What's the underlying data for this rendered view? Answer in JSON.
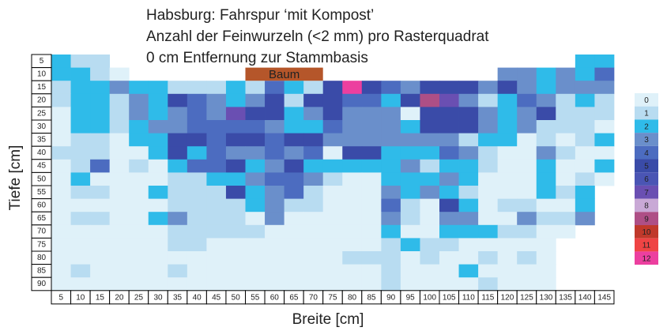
{
  "chart_data": {
    "type": "heatmap",
    "title": [
      "Habsburg: Fahrspur ‘mit Kompost’",
      "Anzahl der Feinwurzeln (<2 mm) pro Rasterquadrat",
      "0 cm Entfernung zur Stammbasis"
    ],
    "xlabel": "Breite [cm]",
    "ylabel": "Tiefe [cm]",
    "annotation": "Baum",
    "x": [
      5,
      10,
      15,
      20,
      25,
      30,
      35,
      40,
      45,
      50,
      55,
      60,
      65,
      70,
      75,
      80,
      85,
      90,
      95,
      100,
      105,
      110,
      115,
      120,
      125,
      130,
      135,
      140,
      145
    ],
    "y": [
      5,
      10,
      15,
      20,
      25,
      30,
      35,
      40,
      45,
      50,
      55,
      60,
      65,
      70,
      75,
      80,
      85,
      90
    ],
    "legend_values": [
      0,
      1,
      2,
      3,
      4,
      5,
      6,
      7,
      8,
      9,
      10,
      11,
      12
    ],
    "colors": [
      "#dff1f9",
      "#b8dcf1",
      "#2fbbe9",
      "#6a8fcb",
      "#4c6cc0",
      "#3a4ba8",
      "#4a55b4",
      "#6a4fb2",
      "#c9a9d6",
      "#ae4f86",
      "#c0392b",
      "#ef4444",
      "#ec3f9f"
    ],
    "z": [
      [
        2,
        1,
        1,
        null,
        null,
        null,
        null,
        null,
        null,
        null,
        null,
        null,
        null,
        null,
        null,
        null,
        null,
        null,
        null,
        null,
        null,
        null,
        null,
        null,
        null,
        null,
        null,
        2,
        2
      ],
      [
        2,
        2,
        1,
        0,
        null,
        null,
        null,
        null,
        null,
        null,
        null,
        null,
        null,
        null,
        null,
        null,
        null,
        null,
        null,
        null,
        null,
        null,
        null,
        3,
        3,
        2,
        3,
        2,
        4
      ],
      [
        1,
        2,
        2,
        3,
        2,
        2,
        1,
        1,
        1,
        2,
        1,
        4,
        2,
        1,
        5,
        12,
        5,
        4,
        3,
        5,
        5,
        5,
        3,
        5,
        3,
        2,
        3,
        3,
        3
      ],
      [
        1,
        2,
        2,
        1,
        3,
        2,
        5,
        4,
        3,
        2,
        3,
        5,
        1,
        5,
        5,
        4,
        4,
        2,
        5,
        9,
        7,
        3,
        1,
        2,
        4,
        3,
        1,
        2,
        1
      ],
      [
        0,
        2,
        2,
        1,
        3,
        2,
        3,
        4,
        3,
        7,
        5,
        5,
        2,
        3,
        5,
        3,
        3,
        3,
        0,
        5,
        5,
        5,
        3,
        2,
        3,
        5,
        1,
        1,
        1
      ],
      [
        0,
        2,
        2,
        1,
        2,
        3,
        3,
        4,
        4,
        4,
        4,
        3,
        2,
        2,
        4,
        3,
        3,
        3,
        2,
        5,
        5,
        5,
        3,
        2,
        3,
        1,
        1,
        1,
        0
      ],
      [
        0,
        1,
        1,
        0,
        2,
        2,
        5,
        5,
        4,
        5,
        5,
        4,
        5,
        5,
        3,
        3,
        3,
        3,
        3,
        3,
        3,
        1,
        2,
        2,
        0,
        1,
        0,
        1,
        2
      ],
      [
        1,
        1,
        1,
        0,
        0,
        2,
        5,
        2,
        4,
        3,
        3,
        4,
        3,
        4,
        0,
        5,
        5,
        2,
        2,
        2,
        4,
        3,
        1,
        0,
        0,
        3,
        1,
        0,
        0
      ],
      [
        0,
        1,
        4,
        0,
        1,
        0,
        2,
        4,
        4,
        5,
        2,
        3,
        5,
        2,
        2,
        2,
        2,
        2,
        3,
        1,
        2,
        2,
        1,
        0,
        0,
        2,
        0,
        0,
        2
      ],
      [
        0,
        2,
        0,
        0,
        0,
        0,
        1,
        1,
        2,
        2,
        3,
        4,
        4,
        3,
        1,
        0,
        0,
        2,
        2,
        2,
        3,
        2,
        0,
        0,
        0,
        2,
        0,
        1,
        0
      ],
      [
        0,
        1,
        1,
        0,
        0,
        2,
        1,
        1,
        1,
        5,
        2,
        3,
        4,
        1,
        0,
        0,
        0,
        3,
        2,
        3,
        2,
        1,
        0,
        0,
        0,
        2,
        1,
        2,
        null
      ],
      [
        0,
        0,
        0,
        0,
        0,
        0,
        1,
        1,
        1,
        1,
        2,
        3,
        1,
        1,
        0,
        0,
        0,
        4,
        1,
        0,
        5,
        2,
        0,
        1,
        1,
        0,
        0,
        2,
        null
      ],
      [
        0,
        1,
        1,
        0,
        0,
        2,
        3,
        1,
        1,
        1,
        0,
        3,
        0,
        0,
        0,
        0,
        0,
        3,
        1,
        0,
        3,
        3,
        0,
        0,
        3,
        1,
        1,
        3,
        null
      ],
      [
        0,
        0,
        0,
        0,
        0,
        0,
        1,
        1,
        1,
        1,
        1,
        0,
        0,
        0,
        0,
        0,
        0,
        2,
        0,
        0,
        2,
        2,
        2,
        1,
        1,
        0,
        0,
        null,
        null
      ],
      [
        0,
        0,
        0,
        0,
        0,
        0,
        1,
        1,
        0,
        0,
        0,
        0,
        0,
        0,
        0,
        0,
        0,
        1,
        2,
        1,
        1,
        0,
        0,
        0,
        0,
        0,
        null,
        null,
        null
      ],
      [
        0,
        0,
        0,
        0,
        0,
        0,
        0,
        0,
        0,
        0,
        0,
        0,
        0,
        0,
        0,
        1,
        1,
        1,
        0,
        1,
        0,
        0,
        1,
        0,
        1,
        0,
        null,
        null,
        null
      ],
      [
        0,
        1,
        0,
        0,
        0,
        0,
        1,
        0,
        0,
        0,
        0,
        0,
        0,
        0,
        0,
        0,
        0,
        1,
        0,
        0,
        0,
        2,
        0,
        0,
        0,
        0,
        null,
        null,
        null
      ],
      [
        0,
        0,
        0,
        0,
        0,
        0,
        0,
        0,
        0,
        0,
        0,
        0,
        0,
        0,
        0,
        0,
        0,
        1,
        0,
        0,
        0,
        0,
        1,
        0,
        0,
        0,
        null,
        null,
        null
      ]
    ]
  }
}
